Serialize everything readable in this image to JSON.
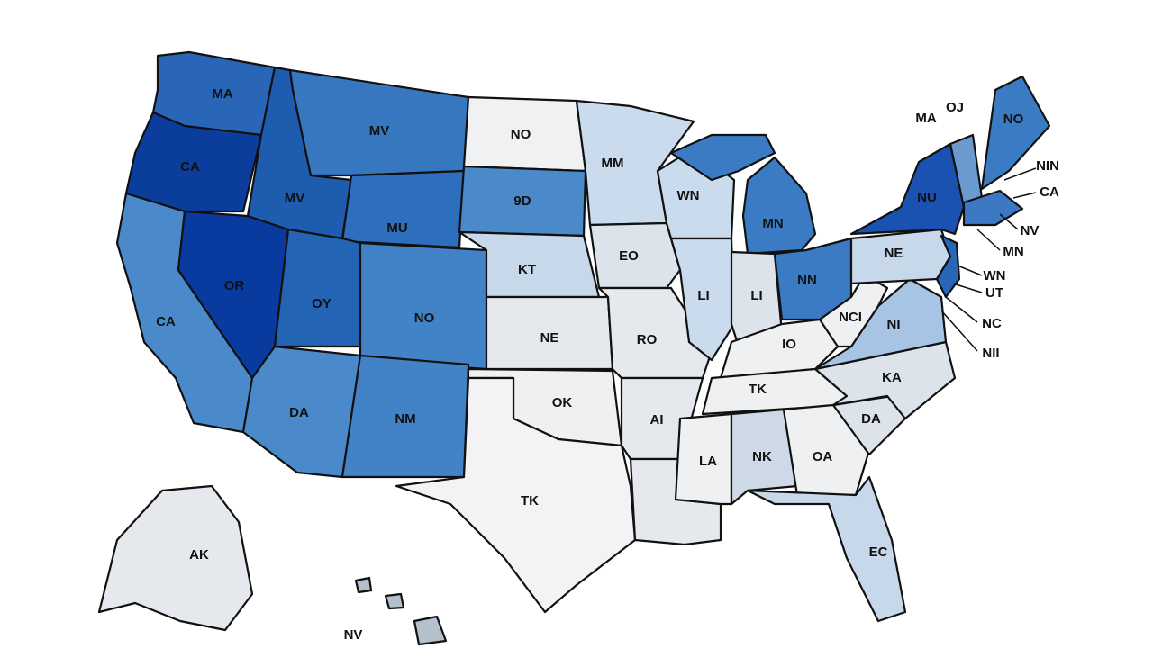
{
  "labels": [
    "MA",
    "MV",
    "NO",
    "MM",
    "CA",
    "MV",
    "9D",
    "MU",
    "WN",
    "MN",
    "OR",
    "OY",
    "NO",
    "KT",
    "EO",
    "LI",
    "LI",
    "NN",
    "NE",
    "NCI",
    "NI",
    "CA",
    "NE",
    "RO",
    "IO",
    "TK",
    "KA",
    "DA",
    "NM",
    "OK",
    "AI",
    "DA",
    "LA",
    "NK",
    "OA",
    "TK",
    "EC",
    "AK",
    "NV",
    "NO",
    "MA",
    "OJ",
    "NU",
    "NIN",
    "CA",
    "NV",
    "MN",
    "WN",
    "UT",
    "NC",
    "NII"
  ]
}
